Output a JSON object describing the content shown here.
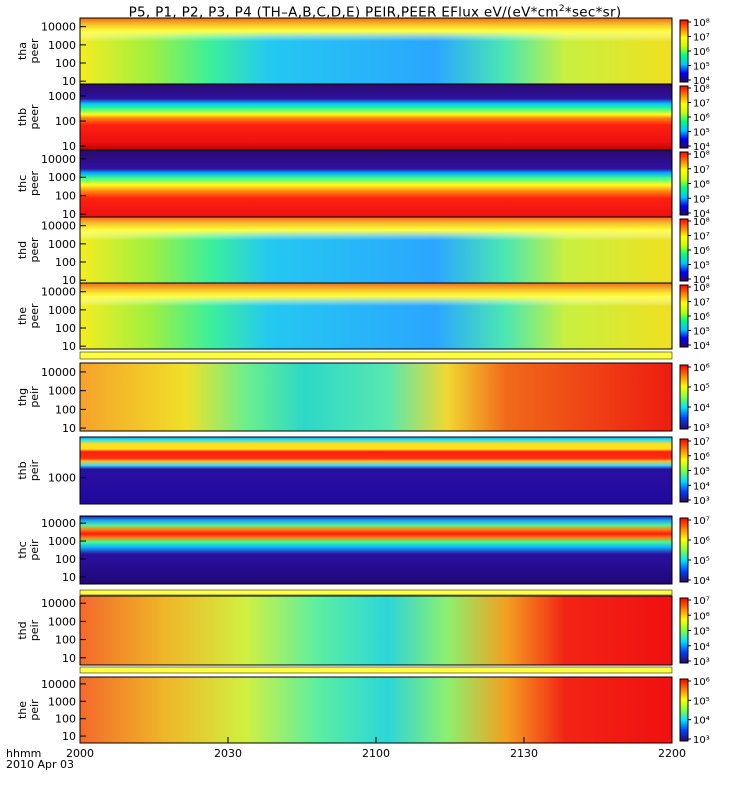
{
  "title": {
    "prefix": "P5, P1, P2, P3, P4 (TH–A,B,C,D,E) PEIR,PEER EFlux eV/(eV*cm",
    "sup": "2",
    "suffix": "*sec*sr)"
  },
  "x_axis": {
    "ticks": [
      "2000",
      "2030",
      "2100",
      "2130",
      "2200"
    ],
    "label_line1": "hhmm",
    "label_line2": "2010 Apr 03"
  },
  "chart_data": {
    "type": "heatmap",
    "title": "P5, P1, P2, P3, P4 (TH–A,B,C,D,E) PEIR,PEER EFlux eV/(eV*cm2*sec*sr)",
    "x": {
      "ticks": [
        "2000",
        "2030",
        "2100",
        "2130",
        "2200"
      ],
      "range": [
        "2000",
        "2200"
      ],
      "units": "hhmm"
    },
    "date": "2010 Apr 03",
    "colormap": [
      "#2a0a5e",
      "#0000ff",
      "#00c8ff",
      "#00ff80",
      "#c8ff00",
      "#ffff00",
      "#ff8000",
      "#ff0000"
    ],
    "panels": [
      {
        "probe": "tha",
        "species": "peer",
        "ylabel": [
          "tha",
          "peer"
        ],
        "yticks": [
          "10",
          "100",
          "1000",
          "10000"
        ],
        "cticks": [
          "10⁴",
          "10⁵",
          "10⁶",
          "10⁷",
          "10⁸"
        ]
      },
      {
        "probe": "thb",
        "species": "peer",
        "ylabel": [
          "thb",
          "peer"
        ],
        "yticks": [
          "10",
          "100",
          "1000"
        ],
        "cticks": [
          "10⁴",
          "10⁵",
          "10⁶",
          "10⁷",
          "10⁸"
        ]
      },
      {
        "probe": "thc",
        "species": "peer",
        "ylabel": [
          "thc",
          "peer"
        ],
        "yticks": [
          "10",
          "100",
          "1000",
          "10000"
        ],
        "cticks": [
          "10⁴",
          "10⁵",
          "10⁶",
          "10⁷",
          "10⁸"
        ]
      },
      {
        "probe": "thd",
        "species": "peer",
        "ylabel": [
          "thd",
          "peer"
        ],
        "yticks": [
          "10",
          "100",
          "1000",
          "10000"
        ],
        "cticks": [
          "10⁴",
          "10⁵",
          "10⁶",
          "10⁷",
          "10⁸"
        ]
      },
      {
        "probe": "the",
        "species": "peer",
        "ylabel": [
          "the",
          "peer"
        ],
        "yticks": [
          "10",
          "100",
          "1000",
          "10000"
        ],
        "cticks": [
          "10⁴",
          "10⁵",
          "10⁶",
          "10⁷",
          "10⁸"
        ]
      },
      {
        "probe": "thg",
        "species": "peir",
        "ylabel": [
          "thg",
          "peir"
        ],
        "yticks": [
          "10",
          "100",
          "1000",
          "10000"
        ],
        "cticks": [
          "10³",
          "10⁴",
          "10⁵",
          "10⁶"
        ]
      },
      {
        "probe": "thb",
        "species": "peir",
        "ylabel": [
          "thb",
          "peir"
        ],
        "yticks": [
          "1000"
        ],
        "cticks": [
          "10³",
          "10⁴",
          "10⁵",
          "10⁶",
          "10⁷"
        ]
      },
      {
        "probe": "thc",
        "species": "peir",
        "ylabel": [
          "thc",
          "peir"
        ],
        "yticks": [
          "10",
          "100",
          "1000",
          "10000"
        ],
        "cticks": [
          "10⁴",
          "10⁵",
          "10⁶",
          "10⁷"
        ]
      },
      {
        "probe": "thd",
        "species": "peir",
        "ylabel": [
          "thd",
          "peir"
        ],
        "yticks": [
          "10",
          "100",
          "1000",
          "10000"
        ],
        "cticks": [
          "10³",
          "10⁴",
          "10⁵",
          "10⁶",
          "10⁷"
        ]
      },
      {
        "probe": "the",
        "species": "peir",
        "ylabel": [
          "the",
          "peir"
        ],
        "yticks": [
          "10",
          "100",
          "1000",
          "10000"
        ],
        "cticks": [
          "10³",
          "10⁴",
          "10⁵",
          "10⁶"
        ]
      }
    ]
  }
}
